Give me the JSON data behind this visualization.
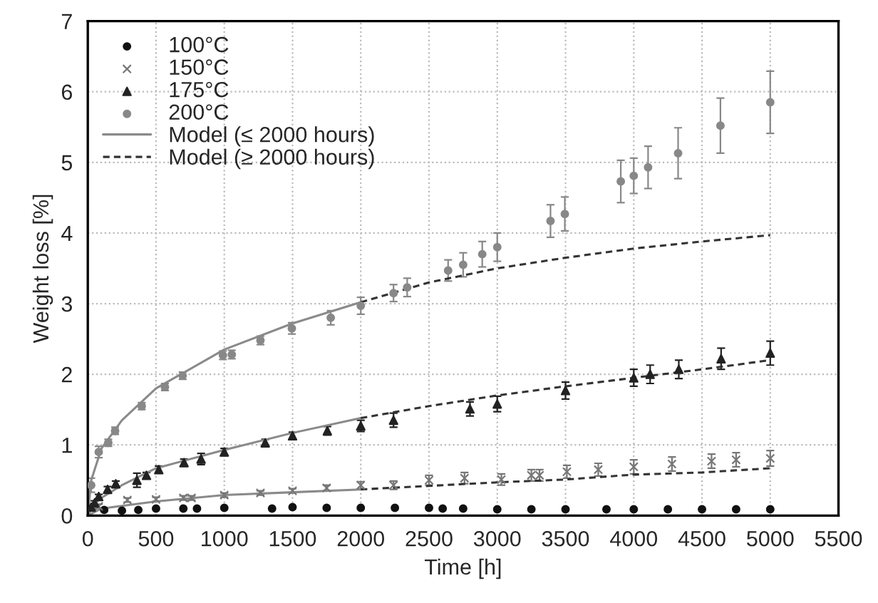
{
  "chart_data": {
    "type": "scatter",
    "xlabel": "Time [h]",
    "ylabel": "Weight loss [%]",
    "xlim": [
      0,
      5500
    ],
    "xticks": [
      0,
      500,
      1000,
      1500,
      2000,
      2500,
      3000,
      3500,
      4000,
      4500,
      5000,
      5500
    ],
    "ylim": [
      0,
      7
    ],
    "yticks": [
      0,
      1,
      2,
      3,
      4,
      5,
      6,
      7
    ],
    "grid": true,
    "legend": "top left",
    "series": [
      {
        "name": "100°C",
        "marker": "circle",
        "color": "#111111",
        "x": [
          120,
          250,
          370,
          500,
          700,
          800,
          1000,
          1350,
          1500,
          1750,
          2000,
          2250,
          2500,
          2600,
          2750,
          3000,
          3250,
          3500,
          3800,
          4000,
          4250,
          4500,
          4750,
          5000
        ],
        "values": [
          0.08,
          0.07,
          0.08,
          0.1,
          0.1,
          0.1,
          0.11,
          0.1,
          0.12,
          0.11,
          0.11,
          0.11,
          0.11,
          0.1,
          0.1,
          0.09,
          0.09,
          0.09,
          0.09,
          0.09,
          0.09,
          0.09,
          0.09,
          0.09
        ]
      },
      {
        "name": "150°C",
        "marker": "cross",
        "color": "#777777",
        "x": [
          80,
          290,
          500,
          700,
          760,
          1000,
          1265,
          1500,
          1750,
          2000,
          2240,
          2500,
          2760,
          3030,
          3250,
          3310,
          3510,
          3740,
          4000,
          4280,
          4570,
          4750,
          5000
        ],
        "values": [
          0.13,
          0.22,
          0.23,
          0.25,
          0.25,
          0.29,
          0.32,
          0.35,
          0.39,
          0.43,
          0.43,
          0.5,
          0.53,
          0.51,
          0.57,
          0.57,
          0.62,
          0.65,
          0.69,
          0.73,
          0.77,
          0.79,
          0.81
        ],
        "errors": [
          0.03,
          0.03,
          0.03,
          0.03,
          0.03,
          0.03,
          0.03,
          0.03,
          0.04,
          0.05,
          0.06,
          0.07,
          0.08,
          0.08,
          0.08,
          0.08,
          0.09,
          0.09,
          0.1,
          0.1,
          0.1,
          0.1,
          0.11
        ]
      },
      {
        "name": "175°C",
        "marker": "triangle",
        "color": "#222222",
        "x": [
          25,
          50,
          80,
          145,
          205,
          360,
          430,
          520,
          705,
          830,
          1000,
          1300,
          1500,
          1755,
          2000,
          2240,
          2800,
          3000,
          3500,
          4000,
          4120,
          4330,
          4640,
          5000
        ],
        "values": [
          0.12,
          0.18,
          0.27,
          0.37,
          0.45,
          0.5,
          0.57,
          0.65,
          0.75,
          0.8,
          0.9,
          1.03,
          1.13,
          1.2,
          1.27,
          1.35,
          1.51,
          1.58,
          1.77,
          1.95,
          2.0,
          2.07,
          2.22,
          2.3
        ],
        "errors": [
          0.03,
          0.03,
          0.03,
          0.04,
          0.04,
          0.1,
          0.04,
          0.05,
          0.05,
          0.08,
          0.05,
          0.05,
          0.05,
          0.06,
          0.08,
          0.1,
          0.1,
          0.11,
          0.12,
          0.12,
          0.13,
          0.13,
          0.15,
          0.17
        ]
      },
      {
        "name": "200°C",
        "marker": "circle",
        "color": "#888888",
        "x": [
          25,
          80,
          150,
          200,
          395,
          565,
          695,
          990,
          1055,
          1265,
          1495,
          1780,
          2000,
          2240,
          2340,
          2640,
          2750,
          2890,
          3000,
          3390,
          3495,
          3905,
          4000,
          4105,
          4325,
          4635,
          5000
        ],
        "values": [
          0.43,
          0.9,
          1.03,
          1.2,
          1.55,
          1.82,
          1.98,
          2.27,
          2.28,
          2.48,
          2.65,
          2.8,
          2.97,
          3.15,
          3.23,
          3.47,
          3.55,
          3.7,
          3.8,
          4.17,
          4.27,
          4.73,
          4.81,
          4.93,
          5.13,
          5.52,
          5.85
        ],
        "errors": [
          0.1,
          0.08,
          0.05,
          0.05,
          0.05,
          0.05,
          0.05,
          0.06,
          0.06,
          0.06,
          0.08,
          0.1,
          0.12,
          0.12,
          0.13,
          0.15,
          0.17,
          0.18,
          0.2,
          0.23,
          0.24,
          0.3,
          0.25,
          0.3,
          0.36,
          0.39,
          0.44
        ]
      },
      {
        "name": "Model (≤ 2000 hours)",
        "type": "line",
        "line_style": "solid",
        "color": "#8a8a8a",
        "x": [
          0,
          25,
          100,
          250,
          500,
          1000,
          1500,
          2000
        ],
        "values": [
          0,
          0.5,
          0.95,
          1.35,
          1.8,
          2.35,
          2.72,
          3.02
        ]
      },
      {
        "name": "Model (≥ 2000 hours)",
        "type": "line",
        "line_style": "dashed",
        "color": "#333333",
        "x": [
          2000,
          2500,
          3000,
          3500,
          4000,
          4500,
          5000
        ],
        "values": [
          3.02,
          3.3,
          3.5,
          3.65,
          3.78,
          3.88,
          3.97
        ]
      },
      {
        "type": "line",
        "line_style": "solid",
        "color": "#8a8a8a",
        "x": [
          0,
          50,
          100,
          250,
          500,
          1000,
          1500,
          2000
        ],
        "values": [
          0,
          0.17,
          0.25,
          0.43,
          0.67,
          0.93,
          1.17,
          1.38
        ]
      },
      {
        "type": "line",
        "line_style": "dashed",
        "color": "#333333",
        "x": [
          2000,
          2500,
          3000,
          3500,
          4000,
          4500,
          5000
        ],
        "values": [
          1.38,
          1.55,
          1.7,
          1.83,
          1.95,
          2.07,
          2.2
        ]
      },
      {
        "type": "line",
        "line_style": "solid",
        "color": "#8a8a8a",
        "x": [
          0,
          100,
          500,
          1000,
          1500,
          2000
        ],
        "values": [
          0,
          0.1,
          0.2,
          0.29,
          0.33,
          0.37
        ]
      },
      {
        "type": "line",
        "line_style": "dashed",
        "color": "#333333",
        "x": [
          2000,
          2500,
          3000,
          3500,
          4000,
          4500,
          5000
        ],
        "values": [
          0.37,
          0.42,
          0.47,
          0.51,
          0.58,
          0.61,
          0.67
        ]
      }
    ]
  }
}
